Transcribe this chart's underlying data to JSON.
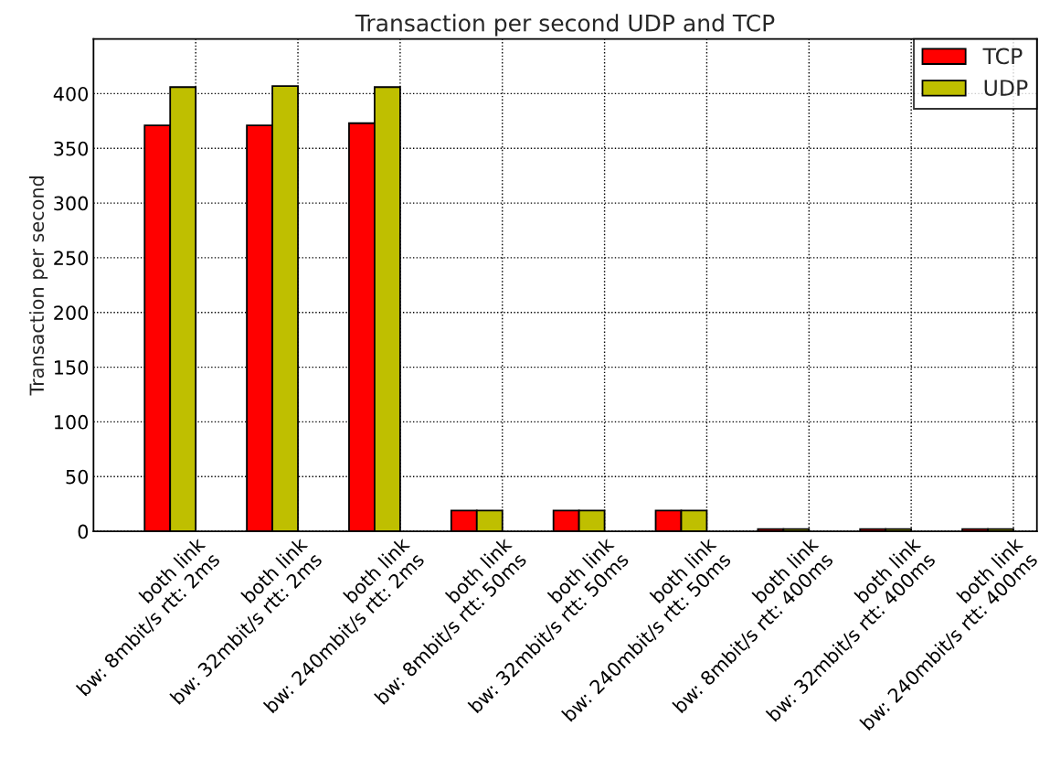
{
  "chart_data": {
    "type": "bar",
    "title": "Transaction per second UDP and TCP",
    "ylabel": "Transaction per second",
    "categories": [
      "both link\nbw: 8mbit/s rtt: 2ms",
      "both link\nbw: 32mbit/s rtt: 2ms",
      "both link\nbw: 240mbit/s rtt: 2ms",
      "both link\nbw: 8mbit/s rtt: 50ms",
      "both link\nbw: 32mbit/s rtt: 50ms",
      "both link\nbw: 240mbit/s rtt: 50ms",
      "both link\nbw: 8mbit/s rtt: 400ms",
      "both link\nbw: 32mbit/s rtt: 400ms",
      "both link\nbw: 240mbit/s rtt: 400ms"
    ],
    "series": [
      {
        "name": "TCP",
        "color": "#ff0000",
        "values": [
          371,
          371,
          373,
          19,
          19,
          19,
          2,
          2,
          2
        ]
      },
      {
        "name": "UDP",
        "color": "#bfbf00",
        "values": [
          406,
          407,
          406,
          19,
          19,
          19,
          2,
          2,
          2
        ]
      }
    ],
    "ylim": [
      0,
      450
    ],
    "yticks": [
      0,
      50,
      100,
      150,
      200,
      250,
      300,
      350,
      400
    ],
    "grid": true,
    "legend": "top right"
  }
}
